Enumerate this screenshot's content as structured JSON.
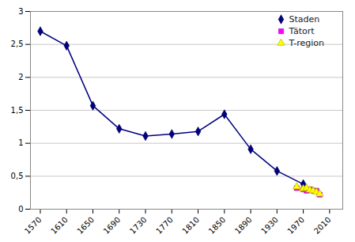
{
  "chart_data": {
    "type": "line",
    "series": [
      {
        "name": "Staden",
        "color": "#000080",
        "marker": "diamond",
        "x": [
          1570,
          1610,
          1650,
          1690,
          1730,
          1770,
          1810,
          1850,
          1890,
          1930,
          1970
        ],
        "values": [
          2.7,
          2.48,
          1.57,
          1.22,
          1.11,
          1.14,
          1.18,
          1.44,
          0.91,
          0.58,
          0.38
        ]
      },
      {
        "name": "Tätort",
        "color": "#FF00FF",
        "marker": "square",
        "x": [
          1960,
          1970,
          1975,
          1980,
          1985,
          1990,
          1995
        ],
        "values": [
          0.32,
          0.3,
          0.28,
          0.3,
          0.28,
          0.28,
          0.22
        ]
      },
      {
        "name": "T-region",
        "color": "#FFFF00",
        "marker": "triangle",
        "x": [
          1960,
          1970,
          1975,
          1980,
          1985,
          1990,
          1995
        ],
        "values": [
          0.34,
          0.31,
          0.32,
          0.29,
          0.28,
          0.26,
          0.23
        ]
      }
    ],
    "xlim": [
      1555,
      2030
    ],
    "xticks": [
      1570,
      1610,
      1650,
      1690,
      1730,
      1770,
      1810,
      1850,
      1890,
      1930,
      1970,
      2010
    ],
    "ylim": [
      0,
      3.0
    ],
    "yticks": [
      0,
      {
        "value": 0.5,
        "label": "0,5"
      },
      1,
      {
        "value": 1.5,
        "label": "1,5"
      },
      2,
      {
        "value": 2.5,
        "label": "2,5"
      },
      3
    ],
    "grid": true,
    "legend": "upper right"
  }
}
